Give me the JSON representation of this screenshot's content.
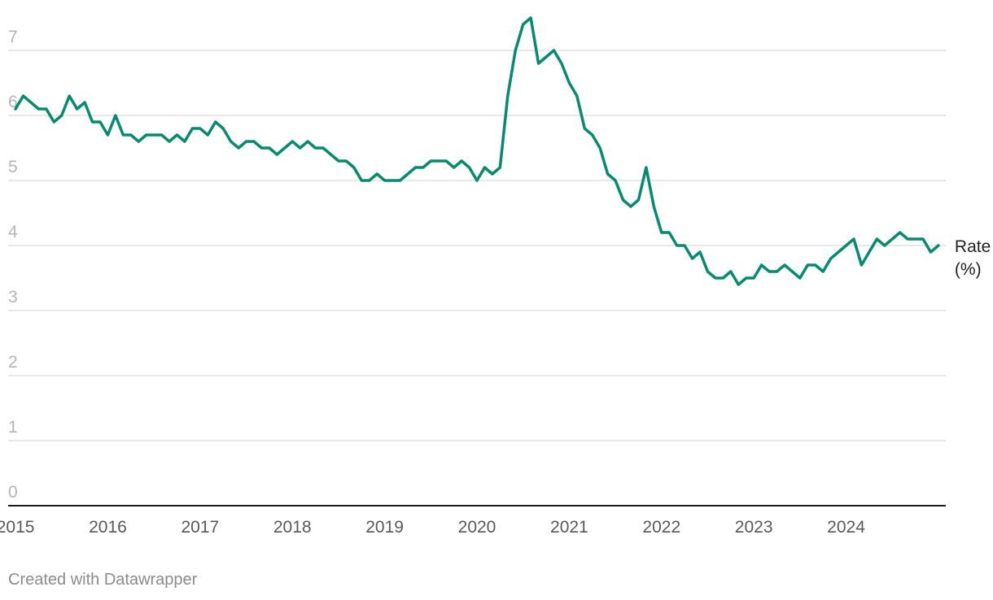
{
  "footer": "Created with Datawrapper",
  "chart_data": {
    "type": "line",
    "title": "",
    "xlabel": "",
    "ylabel": "",
    "xlim": [
      2014.92,
      2025.08
    ],
    "ylim": [
      0,
      7.5
    ],
    "y_ticks": [
      "0",
      "1",
      "2",
      "3",
      "4",
      "5",
      "6",
      "7"
    ],
    "x_ticks": [
      "2015",
      "2016",
      "2017",
      "2018",
      "2019",
      "2020",
      "2021",
      "2022",
      "2023",
      "2024"
    ],
    "grid": true,
    "colors": {
      "line": "#058c6e",
      "grid": "#e2e2e2",
      "axis": "#1a1a1a"
    },
    "x_start": "2015-01",
    "x_step": "1 month",
    "series": [
      {
        "name": "Rate (%)",
        "label_lines": [
          "Rate",
          "(%)"
        ],
        "values": [
          6.1,
          6.3,
          6.2,
          6.1,
          6.1,
          5.9,
          6.0,
          6.3,
          6.1,
          6.2,
          5.9,
          5.9,
          5.7,
          6.0,
          5.7,
          5.7,
          5.6,
          5.7,
          5.7,
          5.7,
          5.6,
          5.7,
          5.6,
          5.8,
          5.8,
          5.7,
          5.9,
          5.8,
          5.6,
          5.5,
          5.6,
          5.6,
          5.5,
          5.5,
          5.4,
          5.5,
          5.6,
          5.5,
          5.6,
          5.5,
          5.5,
          5.4,
          5.3,
          5.3,
          5.2,
          5.0,
          5.0,
          5.1,
          5.0,
          5.0,
          5.0,
          5.1,
          5.2,
          5.2,
          5.3,
          5.3,
          5.3,
          5.2,
          5.3,
          5.2,
          5.0,
          5.2,
          5.1,
          5.2,
          6.3,
          7.0,
          7.4,
          7.5,
          6.8,
          6.9,
          7.0,
          6.8,
          6.5,
          6.3,
          5.8,
          5.7,
          5.5,
          5.1,
          5.0,
          4.7,
          4.6,
          4.7,
          5.2,
          4.6,
          4.2,
          4.2,
          4.0,
          4.0,
          3.8,
          3.9,
          3.6,
          3.5,
          3.5,
          3.6,
          3.4,
          3.5,
          3.5,
          3.7,
          3.6,
          3.6,
          3.7,
          3.6,
          3.5,
          3.7,
          3.7,
          3.6,
          3.8,
          3.9,
          4.0,
          4.1,
          3.7,
          3.9,
          4.1,
          4.0,
          4.1,
          4.2,
          4.1,
          4.1,
          4.1,
          3.9,
          4.0
        ]
      }
    ]
  }
}
